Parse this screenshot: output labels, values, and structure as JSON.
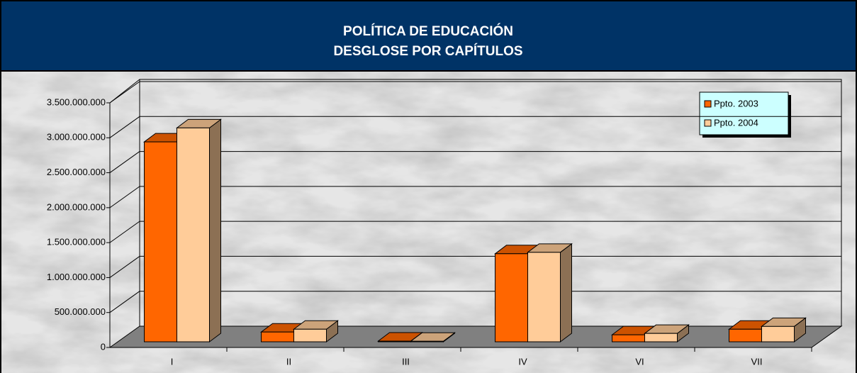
{
  "chart_data": {
    "type": "bar3d",
    "title": "POLÍTICA DE EDUCACIÓN",
    "subtitle": "DESGLOSE POR CAPÍTULOS",
    "categories": [
      "I",
      "II",
      "III",
      "IV",
      "VI",
      "VII"
    ],
    "series": [
      {
        "name": "Ppto. 2003",
        "color": "#ff6600",
        "values": [
          2860000000,
          140000000,
          10000000,
          1260000000,
          100000000,
          180000000
        ]
      },
      {
        "name": "Ppto. 2004",
        "color": "#ffcc99",
        "values": [
          3060000000,
          180000000,
          8000000,
          1280000000,
          120000000,
          220000000
        ]
      }
    ],
    "ylim": [
      0,
      3500000000
    ],
    "yticks": [
      {
        "value": 0,
        "label": "0"
      },
      {
        "value": 500000000,
        "label": "500.000.000"
      },
      {
        "value": 1000000000,
        "label": "1.000.000.000"
      },
      {
        "value": 1500000000,
        "label": "1.500.000.000"
      },
      {
        "value": 2000000000,
        "label": "2.000.000.000"
      },
      {
        "value": 2500000000,
        "label": "2.500.000.000"
      },
      {
        "value": 3000000000,
        "label": "3.000.000.000"
      },
      {
        "value": 3500000000,
        "label": "3.500.000.000"
      }
    ],
    "grid": true,
    "legend": "top-right"
  }
}
